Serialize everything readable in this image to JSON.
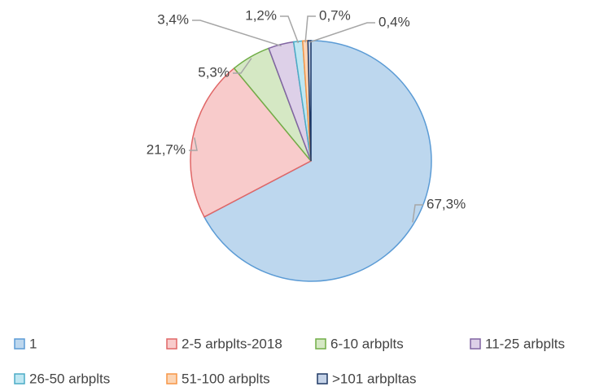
{
  "chart_data": {
    "type": "pie",
    "categories": [
      "1",
      "2-5 arbplts-2018",
      "6-10 arbplts",
      "11-25 arbplts",
      "26-50 arbplts",
      "51-100 arbplts",
      ">101 arbpltas"
    ],
    "values": [
      67.3,
      21.7,
      5.3,
      3.4,
      1.2,
      0.7,
      0.4
    ],
    "value_labels": [
      "67,3%",
      "21,7%",
      "5,3%",
      "3,4%",
      "1,2%",
      "0,7%",
      "0,4%"
    ],
    "colors": [
      "#bdd7ee",
      "#f8cbcb",
      "#d5e8c4",
      "#ddd0e8",
      "#bfe7f2",
      "#fbd5b5",
      "#c5d3e8"
    ],
    "edge_colors": [
      "#5b9bd5",
      "#e06666",
      "#70ad47",
      "#8064a2",
      "#4bacc6",
      "#f79646",
      "#1f3864"
    ],
    "legend": "bottom"
  }
}
